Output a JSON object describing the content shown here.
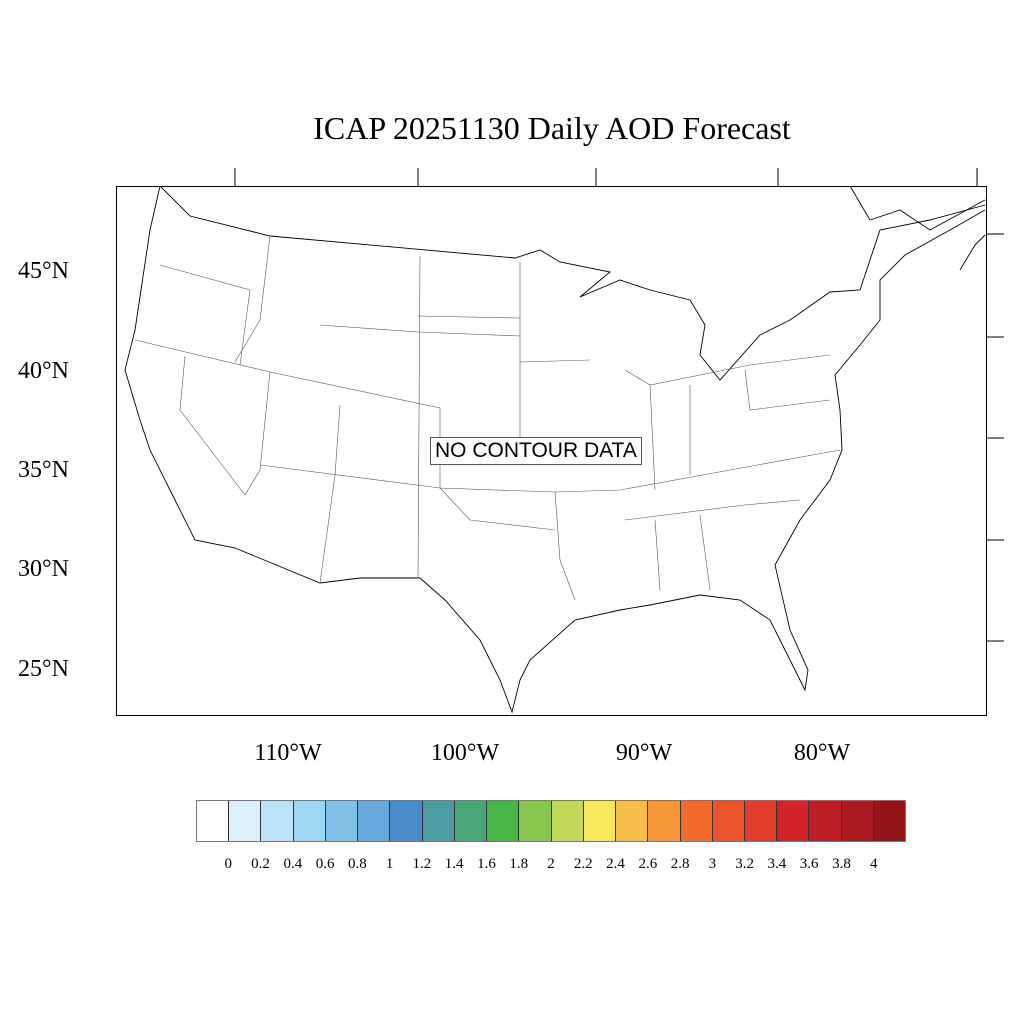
{
  "title": "ICAP 20251130 Daily AOD Forecast",
  "map": {
    "lat_labels": [
      "45°N",
      "40°N",
      "35°N",
      "30°N",
      "25°N"
    ],
    "lon_labels": [
      "110°W",
      "100°W",
      "90°W",
      "80°W"
    ],
    "no_data_text": "NO CONTOUR DATA"
  },
  "colorbar": {
    "labels": [
      "0",
      "0.2",
      "0.4",
      "0.6",
      "0.8",
      "1",
      "1.2",
      "1.4",
      "1.6",
      "1.8",
      "2",
      "2.2",
      "2.4",
      "2.6",
      "2.8",
      "3",
      "3.2",
      "3.4",
      "3.6",
      "3.8",
      "4"
    ],
    "colors": [
      "#ffffff",
      "#dcf0fa",
      "#bde5f7",
      "#9dd6f3",
      "#82c0e7",
      "#67a9db",
      "#4a8cca",
      "#4a9ca0",
      "#48a674",
      "#4ab547",
      "#86c64c",
      "#c4d85a",
      "#f7e85b",
      "#f7be4b",
      "#f6963b",
      "#f46b2b",
      "#ea5530",
      "#e03c2c",
      "#d42229",
      "#bf1d26",
      "#aa1a22",
      "#931519"
    ]
  }
}
